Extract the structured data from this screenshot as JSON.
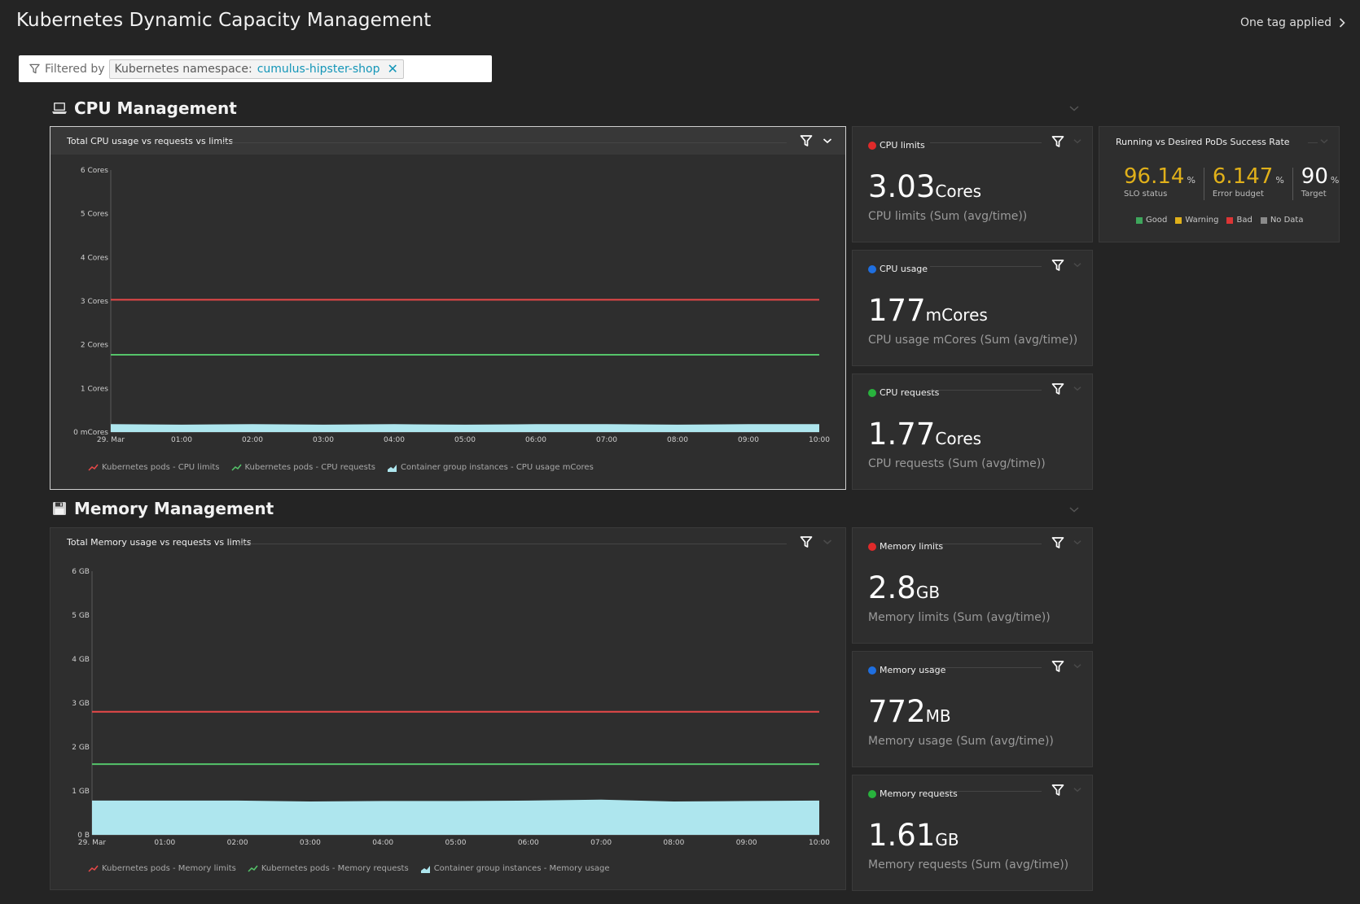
{
  "header": {
    "title": "Kubernetes Dynamic Capacity Management",
    "tags_link": "One tag applied"
  },
  "filter": {
    "label": "Filtered by",
    "key": "Kubernetes namespace:",
    "value": "cumulus-hipster-shop"
  },
  "sections": {
    "cpu": {
      "title": "CPU Management",
      "icon": "laptop-icon"
    },
    "memory": {
      "title": "Memory Management",
      "icon": "floppy-disk-icon"
    }
  },
  "colors": {
    "limits": "#e84848",
    "requests": "#55c46a",
    "usage": "#aee6ee",
    "slo": "#e0b01a",
    "good": "#3ea65c",
    "warning": "#e0b01a",
    "bad": "#dc3535",
    "nodata": "#8a8a8a",
    "dot_red": "#e02a2a",
    "dot_blue": "#1f6fe0",
    "dot_green": "#28b23d"
  },
  "cpu_chart": {
    "title": "Total CPU usage vs requests vs limits",
    "legend": [
      "Kubernetes pods - CPU limits",
      "Kubernetes pods - CPU requests",
      "Container group instances - CPU usage mCores"
    ]
  },
  "memory_chart": {
    "title": "Total Memory usage vs requests vs limits",
    "legend": [
      "Kubernetes pods - Memory limits",
      "Kubernetes pods - Memory requests",
      "Container group instances - Memory usage"
    ]
  },
  "chart_data": [
    {
      "type": "line",
      "x": [
        "29. Mar",
        "01:00",
        "02:00",
        "03:00",
        "04:00",
        "05:00",
        "06:00",
        "07:00",
        "08:00",
        "09:00",
        "10:00"
      ],
      "yticks": [
        "0 mCores",
        "1 Cores",
        "2 Cores",
        "3 Cores",
        "4 Cores",
        "5 Cores",
        "6 Cores"
      ],
      "ylim": [
        0,
        6
      ],
      "series": [
        {
          "name": "Kubernetes pods - CPU limits",
          "values": [
            3.03,
            3.03,
            3.03,
            3.03,
            3.03,
            3.03,
            3.03,
            3.03,
            3.03,
            3.03,
            3.03
          ]
        },
        {
          "name": "Kubernetes pods - CPU requests",
          "values": [
            1.77,
            1.77,
            1.77,
            1.77,
            1.77,
            1.77,
            1.77,
            1.77,
            1.77,
            1.77,
            1.77
          ]
        },
        {
          "name": "Container group instances - CPU usage mCores",
          "values": [
            0.18,
            0.17,
            0.18,
            0.17,
            0.18,
            0.17,
            0.18,
            0.18,
            0.17,
            0.18,
            0.18
          ]
        }
      ]
    },
    {
      "type": "line",
      "x": [
        "29. Mar",
        "01:00",
        "02:00",
        "03:00",
        "04:00",
        "05:00",
        "06:00",
        "07:00",
        "08:00",
        "09:00",
        "10:00"
      ],
      "yticks": [
        "0 B",
        "1 GB",
        "2 GB",
        "3 GB",
        "4 GB",
        "5 GB",
        "6 GB"
      ],
      "ylim": [
        0,
        6
      ],
      "series": [
        {
          "name": "Kubernetes pods - Memory limits",
          "values": [
            2.8,
            2.8,
            2.8,
            2.8,
            2.8,
            2.8,
            2.8,
            2.8,
            2.8,
            2.8,
            2.8
          ]
        },
        {
          "name": "Kubernetes pods - Memory requests",
          "values": [
            1.61,
            1.61,
            1.61,
            1.61,
            1.61,
            1.61,
            1.61,
            1.61,
            1.61,
            1.61,
            1.61
          ]
        },
        {
          "name": "Container group instances - Memory usage",
          "values": [
            0.78,
            0.78,
            0.78,
            0.76,
            0.77,
            0.77,
            0.78,
            0.8,
            0.76,
            0.77,
            0.78
          ]
        }
      ]
    }
  ],
  "singles": [
    {
      "title": "CPU limits",
      "value": "3.03",
      "unit": "Cores",
      "sub": "CPU limits (Sum (avg/time))",
      "dot": "#e02a2a"
    },
    {
      "title": "CPU usage",
      "value": "177",
      "unit": "mCores",
      "sub": "CPU usage mCores (Sum (avg/time))",
      "dot": "#1f6fe0"
    },
    {
      "title": "CPU requests",
      "value": "1.77",
      "unit": "Cores",
      "sub": "CPU requests (Sum (avg/time))",
      "dot": "#28b23d"
    },
    {
      "title": "Memory limits",
      "value": "2.8",
      "unit": "GB",
      "sub": "Memory limits (Sum (avg/time))",
      "dot": "#e02a2a"
    },
    {
      "title": "Memory usage",
      "value": "772",
      "unit": "MB",
      "sub": "Memory usage (Sum (avg/time))",
      "dot": "#1f6fe0"
    },
    {
      "title": "Memory requests",
      "value": "1.61",
      "unit": "GB",
      "sub": "Memory requests (Sum (avg/time))",
      "dot": "#28b23d"
    }
  ],
  "slo": {
    "title": "Running vs Desired PoDs Success Rate",
    "status": "96.14",
    "status_label": "SLO status",
    "budget": "6.147",
    "budget_label": "Error budget",
    "target": "90",
    "target_label": "Target",
    "pct": "%",
    "legend": [
      "Good",
      "Warning",
      "Bad",
      "No Data"
    ]
  }
}
